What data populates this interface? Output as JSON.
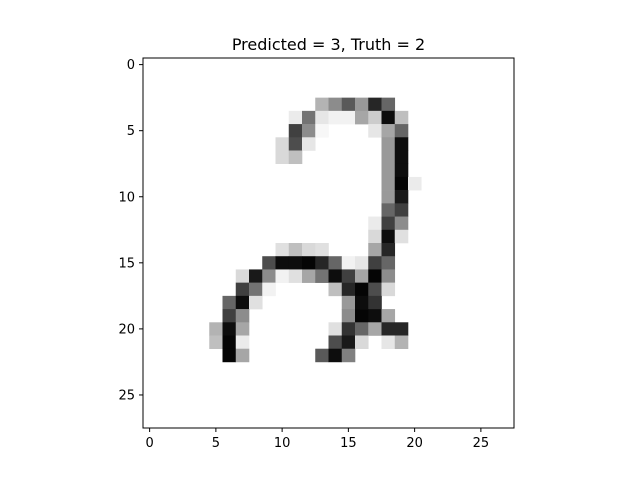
{
  "chart_data": {
    "type": "heatmap",
    "title": "Predicted = 3, Truth = 2",
    "xlabel": "",
    "ylabel": "",
    "colormap": "gray_r",
    "rows": 28,
    "cols": 28,
    "xlim": [
      -0.5,
      27.5
    ],
    "ylim": [
      27.5,
      -0.5
    ],
    "x_ticks": [
      0,
      5,
      10,
      15,
      20,
      25
    ],
    "y_ticks": [
      0,
      5,
      10,
      15,
      20,
      25
    ],
    "pixels": [
      {
        "r": 3,
        "c": 13,
        "v": 0.3
      },
      {
        "r": 3,
        "c": 14,
        "v": 0.45
      },
      {
        "r": 3,
        "c": 15,
        "v": 0.65
      },
      {
        "r": 3,
        "c": 16,
        "v": 0.4
      },
      {
        "r": 3,
        "c": 17,
        "v": 0.85
      },
      {
        "r": 3,
        "c": 18,
        "v": 0.6
      },
      {
        "r": 4,
        "c": 11,
        "v": 0.08
      },
      {
        "r": 4,
        "c": 12,
        "v": 0.55
      },
      {
        "r": 4,
        "c": 13,
        "v": 0.1
      },
      {
        "r": 4,
        "c": 14,
        "v": 0.05
      },
      {
        "r": 4,
        "c": 15,
        "v": 0.05
      },
      {
        "r": 4,
        "c": 16,
        "v": 0.35
      },
      {
        "r": 4,
        "c": 17,
        "v": 0.2
      },
      {
        "r": 4,
        "c": 18,
        "v": 0.95
      },
      {
        "r": 4,
        "c": 19,
        "v": 0.25
      },
      {
        "r": 5,
        "c": 11,
        "v": 0.75
      },
      {
        "r": 5,
        "c": 12,
        "v": 0.45
      },
      {
        "r": 5,
        "c": 13,
        "v": 0.03
      },
      {
        "r": 5,
        "c": 17,
        "v": 0.1
      },
      {
        "r": 5,
        "c": 18,
        "v": 0.35
      },
      {
        "r": 5,
        "c": 19,
        "v": 0.6
      },
      {
        "r": 6,
        "c": 10,
        "v": 0.15
      },
      {
        "r": 6,
        "c": 11,
        "v": 0.7
      },
      {
        "r": 6,
        "c": 12,
        "v": 0.1
      },
      {
        "r": 6,
        "c": 18,
        "v": 0.4
      },
      {
        "r": 6,
        "c": 19,
        "v": 0.95
      },
      {
        "r": 7,
        "c": 10,
        "v": 0.15
      },
      {
        "r": 7,
        "c": 11,
        "v": 0.25
      },
      {
        "r": 7,
        "c": 18,
        "v": 0.4
      },
      {
        "r": 7,
        "c": 19,
        "v": 0.95
      },
      {
        "r": 8,
        "c": 18,
        "v": 0.4
      },
      {
        "r": 8,
        "c": 19,
        "v": 0.95
      },
      {
        "r": 9,
        "c": 18,
        "v": 0.4
      },
      {
        "r": 9,
        "c": 19,
        "v": 0.98
      },
      {
        "r": 9,
        "c": 20,
        "v": 0.08
      },
      {
        "r": 10,
        "c": 18,
        "v": 0.4
      },
      {
        "r": 10,
        "c": 19,
        "v": 0.9
      },
      {
        "r": 11,
        "c": 18,
        "v": 0.6
      },
      {
        "r": 11,
        "c": 19,
        "v": 0.75
      },
      {
        "r": 12,
        "c": 17,
        "v": 0.08
      },
      {
        "r": 12,
        "c": 18,
        "v": 0.75
      },
      {
        "r": 12,
        "c": 19,
        "v": 0.45
      },
      {
        "r": 13,
        "c": 17,
        "v": 0.15
      },
      {
        "r": 13,
        "c": 18,
        "v": 0.95
      },
      {
        "r": 13,
        "c": 19,
        "v": 0.12
      },
      {
        "r": 14,
        "c": 10,
        "v": 0.12
      },
      {
        "r": 14,
        "c": 11,
        "v": 0.25
      },
      {
        "r": 14,
        "c": 12,
        "v": 0.15
      },
      {
        "r": 14,
        "c": 13,
        "v": 0.12
      },
      {
        "r": 14,
        "c": 17,
        "v": 0.35
      },
      {
        "r": 14,
        "c": 18,
        "v": 0.85
      },
      {
        "r": 15,
        "c": 9,
        "v": 0.7
      },
      {
        "r": 15,
        "c": 10,
        "v": 0.95
      },
      {
        "r": 15,
        "c": 11,
        "v": 0.95
      },
      {
        "r": 15,
        "c": 12,
        "v": 0.98
      },
      {
        "r": 15,
        "c": 13,
        "v": 0.85
      },
      {
        "r": 15,
        "c": 14,
        "v": 0.6
      },
      {
        "r": 15,
        "c": 15,
        "v": 0.05
      },
      {
        "r": 15,
        "c": 16,
        "v": 0.1
      },
      {
        "r": 15,
        "c": 17,
        "v": 0.75
      },
      {
        "r": 15,
        "c": 18,
        "v": 0.6
      },
      {
        "r": 16,
        "c": 7,
        "v": 0.15
      },
      {
        "r": 16,
        "c": 8,
        "v": 0.9
      },
      {
        "r": 16,
        "c": 9,
        "v": 0.45
      },
      {
        "r": 16,
        "c": 10,
        "v": 0.05
      },
      {
        "r": 16,
        "c": 11,
        "v": 0.12
      },
      {
        "r": 16,
        "c": 12,
        "v": 0.35
      },
      {
        "r": 16,
        "c": 13,
        "v": 0.55
      },
      {
        "r": 16,
        "c": 14,
        "v": 0.95
      },
      {
        "r": 16,
        "c": 15,
        "v": 0.75
      },
      {
        "r": 16,
        "c": 16,
        "v": 0.35
      },
      {
        "r": 16,
        "c": 17,
        "v": 0.98
      },
      {
        "r": 16,
        "c": 18,
        "v": 0.45
      },
      {
        "r": 17,
        "c": 7,
        "v": 0.75
      },
      {
        "r": 17,
        "c": 8,
        "v": 0.55
      },
      {
        "r": 17,
        "c": 9,
        "v": 0.05
      },
      {
        "r": 17,
        "c": 14,
        "v": 0.25
      },
      {
        "r": 17,
        "c": 15,
        "v": 0.85
      },
      {
        "r": 17,
        "c": 16,
        "v": 0.98
      },
      {
        "r": 17,
        "c": 17,
        "v": 0.7
      },
      {
        "r": 17,
        "c": 18,
        "v": 0.15
      },
      {
        "r": 18,
        "c": 6,
        "v": 0.6
      },
      {
        "r": 18,
        "c": 7,
        "v": 0.95
      },
      {
        "r": 18,
        "c": 8,
        "v": 0.12
      },
      {
        "r": 18,
        "c": 15,
        "v": 0.4
      },
      {
        "r": 18,
        "c": 16,
        "v": 0.95
      },
      {
        "r": 18,
        "c": 17,
        "v": 0.8
      },
      {
        "r": 19,
        "c": 6,
        "v": 0.75
      },
      {
        "r": 19,
        "c": 7,
        "v": 0.45
      },
      {
        "r": 19,
        "c": 15,
        "v": 0.45
      },
      {
        "r": 19,
        "c": 16,
        "v": 0.98
      },
      {
        "r": 19,
        "c": 17,
        "v": 0.95
      },
      {
        "r": 19,
        "c": 18,
        "v": 0.35
      },
      {
        "r": 20,
        "c": 5,
        "v": 0.3
      },
      {
        "r": 20,
        "c": 6,
        "v": 0.95
      },
      {
        "r": 20,
        "c": 7,
        "v": 0.35
      },
      {
        "r": 20,
        "c": 14,
        "v": 0.12
      },
      {
        "r": 20,
        "c": 15,
        "v": 0.8
      },
      {
        "r": 20,
        "c": 16,
        "v": 0.6
      },
      {
        "r": 20,
        "c": 17,
        "v": 0.35
      },
      {
        "r": 20,
        "c": 18,
        "v": 0.85
      },
      {
        "r": 20,
        "c": 19,
        "v": 0.85
      },
      {
        "r": 21,
        "c": 5,
        "v": 0.25
      },
      {
        "r": 21,
        "c": 6,
        "v": 0.98
      },
      {
        "r": 21,
        "c": 7,
        "v": 0.08
      },
      {
        "r": 21,
        "c": 14,
        "v": 0.7
      },
      {
        "r": 21,
        "c": 15,
        "v": 0.9
      },
      {
        "r": 21,
        "c": 16,
        "v": 0.15
      },
      {
        "r": 21,
        "c": 18,
        "v": 0.1
      },
      {
        "r": 21,
        "c": 19,
        "v": 0.3
      },
      {
        "r": 22,
        "c": 6,
        "v": 0.98
      },
      {
        "r": 22,
        "c": 7,
        "v": 0.35
      },
      {
        "r": 22,
        "c": 13,
        "v": 0.65
      },
      {
        "r": 22,
        "c": 14,
        "v": 0.95
      },
      {
        "r": 22,
        "c": 15,
        "v": 0.5
      }
    ]
  }
}
